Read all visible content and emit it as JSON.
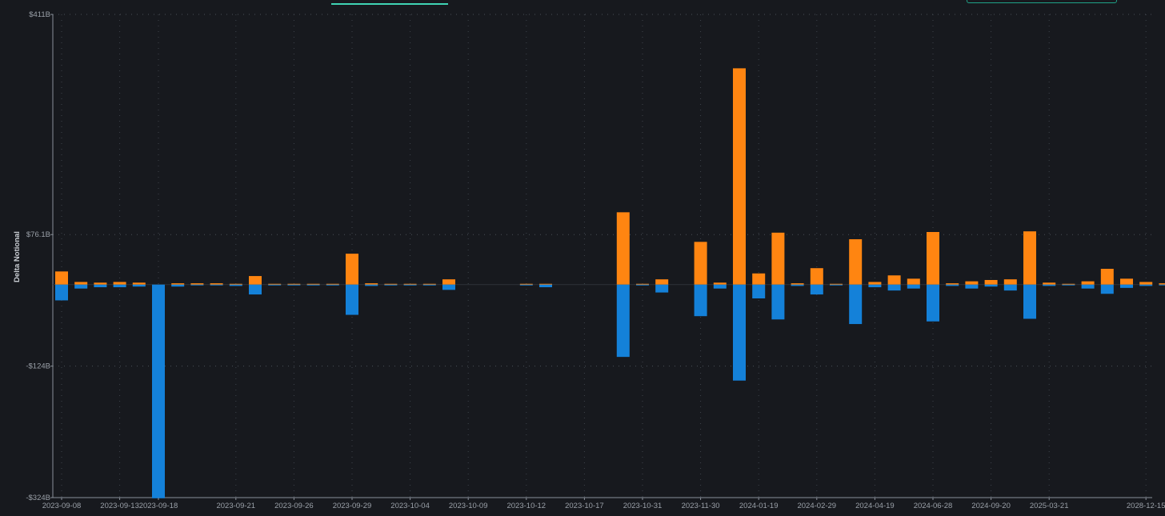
{
  "header": {
    "tab_indicator_color": "#3fd3b4",
    "button_border_color": "#1fa287"
  },
  "chart_data": {
    "type": "bar",
    "stacked": true,
    "ylabel": "Delta Notional",
    "ylim": [
      -324,
      411
    ],
    "y_ticks": [
      {
        "value": 411,
        "label": "$411B"
      },
      {
        "value": 76.1,
        "label": "$76.1B"
      },
      {
        "value": -124,
        "label": "-$124B"
      },
      {
        "value": -324,
        "label": "-$324B"
      }
    ],
    "x_tick_labels": [
      "2023-09-08",
      "2023-09-13",
      "2023-09-18",
      "2023-09-21",
      "2023-09-26",
      "2023-09-29",
      "2023-10-04",
      "2023-10-09",
      "2023-10-12",
      "2023-10-17",
      "2023-10-31",
      "2023-11-30",
      "2024-01-19",
      "2024-02-29",
      "2024-04-19",
      "2024-06-28",
      "2024-09-20",
      "2025-03-21",
      "2028-12-15"
    ],
    "x_tick_label_index": [
      0,
      3,
      5,
      9,
      12,
      15,
      18,
      21,
      24,
      27,
      30,
      33,
      36,
      39,
      42,
      45,
      48,
      51,
      56
    ],
    "grid": true,
    "colors": {
      "positive": "#ff8511",
      "negative": "#1481d9"
    },
    "series": [
      {
        "polarity": "positive",
        "values": [
          20,
          4,
          3,
          4,
          3,
          0,
          2,
          2,
          2,
          1,
          13,
          1,
          1,
          1,
          1,
          47,
          2,
          1,
          1,
          1,
          8,
          0,
          0,
          0,
          1,
          1,
          0,
          0,
          0,
          110,
          1,
          8,
          0,
          65,
          3,
          329,
          17,
          79,
          2,
          25,
          1,
          69,
          4,
          14,
          9,
          80,
          2,
          5,
          7,
          8,
          81,
          3,
          1,
          5,
          24,
          9,
          4,
          2
        ]
      },
      {
        "polarity": "negative",
        "values": [
          -24,
          -6,
          -4,
          -4,
          -3,
          -325,
          -3,
          -1,
          -1,
          -2,
          -15,
          -1,
          -1,
          -1,
          -1,
          -46,
          -2,
          -1,
          -1,
          -1,
          -8,
          0,
          0,
          0,
          -1,
          -4,
          0,
          0,
          0,
          -110,
          -1,
          -12,
          0,
          -48,
          -6,
          -146,
          -21,
          -53,
          -2,
          -15,
          -1,
          -60,
          -4,
          -9,
          -6,
          -56,
          -2,
          -6,
          -3,
          -9,
          -52,
          -2,
          -1,
          -6,
          -14,
          -5,
          -2,
          -1
        ]
      }
    ]
  }
}
